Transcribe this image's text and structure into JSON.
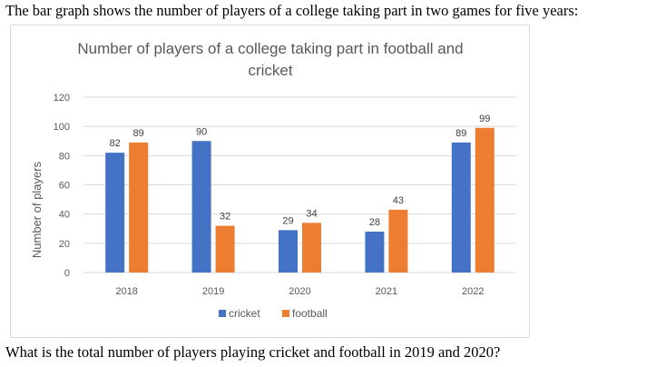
{
  "intro_text": "The bar graph shows the number of players of a college taking part in two games for five years:",
  "question_text": "What is the total number of players playing cricket and football in 2019 and 2020?",
  "chart_data": {
    "type": "bar",
    "title_line1": "Number of players of a college taking part in football and",
    "title_line2": "cricket",
    "xlabel": "",
    "ylabel": "Number of players",
    "ylim": [
      0,
      120
    ],
    "yticks": [
      0,
      20,
      40,
      60,
      80,
      100,
      120
    ],
    "grid": true,
    "legend_position": "bottom",
    "categories": [
      "2018",
      "2019",
      "2020",
      "2021",
      "2022"
    ],
    "series": [
      {
        "name": "cricket",
        "color": "#4472c4",
        "values": [
          82,
          90,
          29,
          28,
          89
        ]
      },
      {
        "name": "football",
        "color": "#ed7d31",
        "values": [
          89,
          32,
          34,
          43,
          99
        ]
      }
    ]
  }
}
